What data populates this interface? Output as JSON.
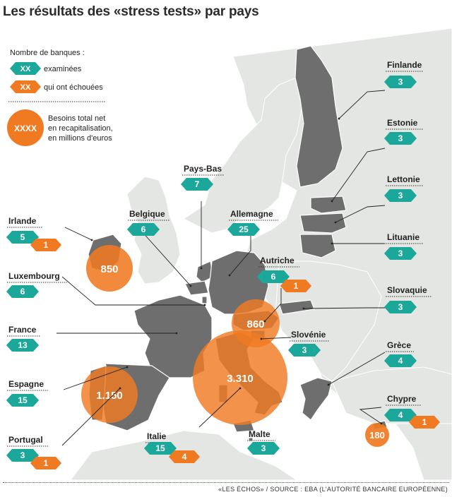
{
  "title": "Les résultats des «stress tests» par pays",
  "legend": {
    "heading": "Nombre de banques :",
    "examined_sample": "XX",
    "examined_label": "examinées",
    "failed_sample": "XX",
    "failed_label": "qui ont échouées",
    "bubble_sample": "XXXX",
    "bubble_label_1": "Besoins total net",
    "bubble_label_2": "en recapitalisation,",
    "bubble_label_3": "en millions d'euros"
  },
  "colors": {
    "teal": "#1ba89a",
    "orange": "#f07a22",
    "country_fill": "#6e6e6e",
    "land_fill": "#e3e6e3",
    "sea_fill": "#ffffff"
  },
  "countries": [
    {
      "name": "Finlande",
      "examined": "3"
    },
    {
      "name": "Estonie",
      "examined": "3"
    },
    {
      "name": "Lettonie",
      "examined": "3"
    },
    {
      "name": "Lituanie",
      "examined": "3"
    },
    {
      "name": "Slovaquie",
      "examined": "3"
    },
    {
      "name": "Pays-Bas",
      "examined": "7"
    },
    {
      "name": "Belgique",
      "examined": "6"
    },
    {
      "name": "Allemagne",
      "examined": "25"
    },
    {
      "name": "Irlande",
      "examined": "5",
      "failed": "1",
      "need": "850"
    },
    {
      "name": "Luxembourg",
      "examined": "6"
    },
    {
      "name": "Autriche",
      "examined": "6",
      "failed": "1",
      "need": "860"
    },
    {
      "name": "France",
      "examined": "13"
    },
    {
      "name": "Slovénie",
      "examined": "3"
    },
    {
      "name": "Grèce",
      "examined": "4"
    },
    {
      "name": "Espagne",
      "examined": "15",
      "need": "1.150"
    },
    {
      "name": "Italie",
      "examined": "15",
      "failed": "4",
      "need": "3.310"
    },
    {
      "name": "Chypre",
      "examined": "4",
      "failed": "1",
      "need": "180"
    },
    {
      "name": "Portugal",
      "examined": "3",
      "failed": "1"
    },
    {
      "name": "Malte",
      "examined": "3"
    }
  ],
  "footer": "«LES ÉCHOS» / SOURCE : EBA (L'AUTORITÉ BANCAIRE EUROPÉENNE)"
}
